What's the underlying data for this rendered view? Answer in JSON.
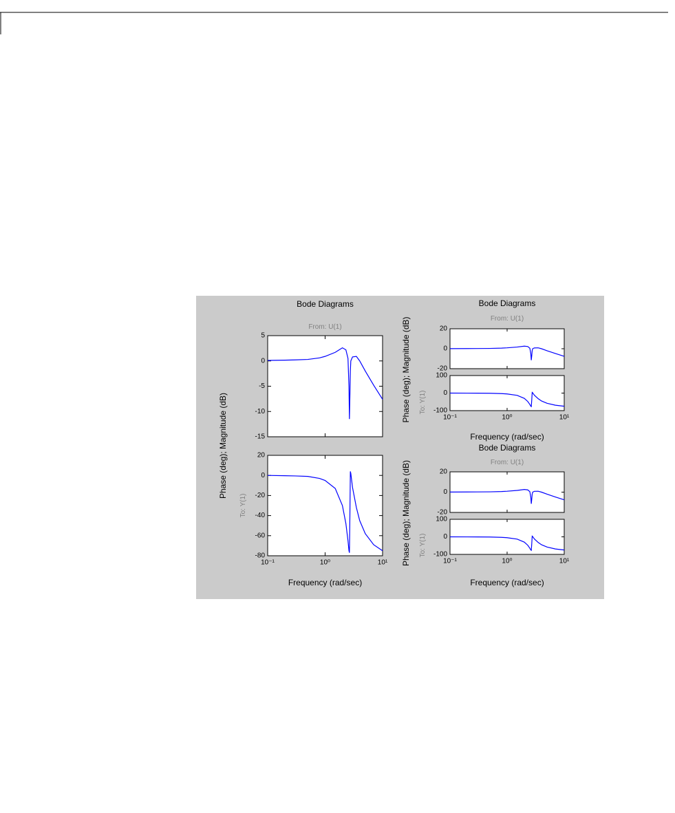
{
  "chart_data": [
    {
      "type": "bode",
      "title": "Bode Diagrams",
      "from_label": "From: U(1)",
      "to_label": "To: Y(1)",
      "ylabel": "Phase (deg); Magnitude (dB)",
      "xlabel": "Frequency (rad/sec)",
      "log_x": true,
      "xlim": [
        0.1,
        10
      ],
      "xticks": [
        {
          "value": 0.1,
          "label": "10⁻¹"
        },
        {
          "value": 1,
          "label": "10⁰"
        },
        {
          "value": 10,
          "label": "10¹"
        }
      ],
      "x": [
        0.1,
        0.2,
        0.3,
        0.5,
        0.8,
        1,
        1.5,
        2,
        2.3,
        2.5,
        2.6,
        2.65,
        2.7,
        2.75,
        2.8,
        3,
        3.5,
        4,
        5,
        7,
        10
      ],
      "panels": [
        {
          "color": "#0000ff",
          "ylim": [
            -15,
            5
          ],
          "yticks": [
            -15,
            -10,
            -5,
            0,
            5
          ],
          "values": [
            0.1,
            0.15,
            0.2,
            0.3,
            0.6,
            0.9,
            1.7,
            2.6,
            2.2,
            0.5,
            -5,
            -11.5,
            -7,
            -2,
            0,
            0.8,
            0.9,
            0,
            -2,
            -4.8,
            -7.6
          ]
        },
        {
          "color": "#0000ff",
          "ylim": [
            -80,
            20
          ],
          "yticks": [
            -80,
            -60,
            -40,
            -20,
            0,
            20
          ],
          "values": [
            0,
            -0.3,
            -0.5,
            -1,
            -3,
            -5,
            -13,
            -30,
            -48,
            -65,
            -75,
            -77,
            -40,
            4,
            2,
            -12,
            -32,
            -45,
            -58,
            -69,
            -75
          ]
        }
      ]
    },
    {
      "type": "bode",
      "title": "Bode Diagrams",
      "from_label": "From: U(1)",
      "to_label": "To: Y(1)",
      "ylabel": "Phase (deg); Magnitude (dB)",
      "xlabel": "Frequency (rad/sec)",
      "log_x": true,
      "xlim": [
        0.1,
        10
      ],
      "xticks": [
        {
          "value": 0.1,
          "label": "10⁻¹"
        },
        {
          "value": 1,
          "label": "10⁰"
        },
        {
          "value": 10,
          "label": "10¹"
        }
      ],
      "x": [
        0.1,
        0.2,
        0.3,
        0.5,
        0.8,
        1,
        1.5,
        2,
        2.3,
        2.5,
        2.6,
        2.65,
        2.7,
        2.75,
        2.8,
        3,
        3.5,
        4,
        5,
        7,
        10
      ],
      "panels": [
        {
          "color": "#0000ff",
          "ylim": [
            -20,
            20
          ],
          "yticks": [
            -20,
            0,
            20
          ],
          "values": [
            0.1,
            0.15,
            0.2,
            0.3,
            0.6,
            0.9,
            1.7,
            2.6,
            2.2,
            0.5,
            -5,
            -11.5,
            -7,
            -2,
            0,
            0.8,
            0.9,
            0,
            -2,
            -4.8,
            -7.6
          ]
        },
        {
          "color": "#0000ff",
          "ylim": [
            -100,
            100
          ],
          "yticks": [
            -100,
            0,
            100
          ],
          "values": [
            0,
            -0.3,
            -0.5,
            -1,
            -3,
            -5,
            -13,
            -30,
            -48,
            -65,
            -75,
            -77,
            -40,
            4,
            2,
            -12,
            -32,
            -45,
            -58,
            -69,
            -75
          ]
        }
      ]
    },
    {
      "type": "bode",
      "title": "Bode Diagrams",
      "from_label": "From: U(1)",
      "to_label": "To: Y(1)",
      "ylabel": "Phase (deg); Magnitude (dB)",
      "xlabel": "Frequency (rad/sec)",
      "log_x": true,
      "xlim": [
        0.1,
        10
      ],
      "xticks": [
        {
          "value": 0.1,
          "label": "10⁻¹"
        },
        {
          "value": 1,
          "label": "10⁰"
        },
        {
          "value": 10,
          "label": "10¹"
        }
      ],
      "x": [
        0.1,
        0.2,
        0.3,
        0.5,
        0.8,
        1,
        1.5,
        2,
        2.3,
        2.5,
        2.6,
        2.65,
        2.7,
        2.75,
        2.8,
        3,
        3.5,
        4,
        5,
        7,
        10
      ],
      "panels": [
        {
          "color": "#0000ff",
          "ylim": [
            -20,
            20
          ],
          "yticks": [
            -20,
            0,
            20
          ],
          "values": [
            0.1,
            0.15,
            0.2,
            0.3,
            0.6,
            0.9,
            1.7,
            2.6,
            2.2,
            0.5,
            -5,
            -11.5,
            -7,
            -2,
            0,
            0.8,
            0.9,
            0,
            -2,
            -4.8,
            -7.6
          ]
        },
        {
          "color": "#0000ff",
          "ylim": [
            -100,
            100
          ],
          "yticks": [
            -100,
            0,
            100
          ],
          "values": [
            0,
            -0.3,
            -0.5,
            -1,
            -3,
            -5,
            -13,
            -30,
            -48,
            -65,
            -75,
            -77,
            -40,
            4,
            2,
            -12,
            -32,
            -45,
            -58,
            -69,
            -75
          ]
        }
      ]
    }
  ]
}
